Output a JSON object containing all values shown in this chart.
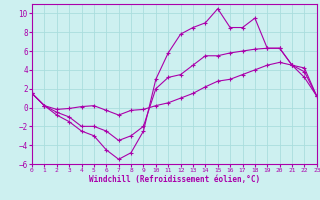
{
  "xlabel": "Windchill (Refroidissement éolien,°C)",
  "xlim": [
    0,
    23
  ],
  "ylim": [
    -6,
    11
  ],
  "bg_color": "#cdf0f0",
  "grid_color": "#aadddd",
  "line_color": "#aa00aa",
  "xticks": [
    0,
    1,
    2,
    3,
    4,
    5,
    6,
    7,
    8,
    9,
    10,
    11,
    12,
    13,
    14,
    15,
    16,
    17,
    18,
    19,
    20,
    21,
    22,
    23
  ],
  "yticks": [
    -6,
    -4,
    -2,
    0,
    2,
    4,
    6,
    8,
    10
  ],
  "line1_x": [
    0,
    1,
    2,
    3,
    4,
    5,
    6,
    7,
    8,
    9,
    10,
    11,
    12,
    13,
    14,
    15,
    16,
    17,
    18,
    19,
    20,
    21,
    22,
    23
  ],
  "line1_y": [
    1.5,
    0.2,
    -0.8,
    -1.5,
    -2.5,
    -3.0,
    -4.5,
    -5.5,
    -4.8,
    -2.5,
    3.0,
    5.8,
    7.8,
    8.5,
    9.0,
    10.5,
    8.5,
    8.5,
    9.5,
    6.3,
    6.3,
    4.5,
    3.2,
    1.2
  ],
  "line2_x": [
    0,
    1,
    2,
    3,
    4,
    5,
    6,
    7,
    8,
    9,
    10,
    11,
    12,
    13,
    14,
    15,
    16,
    17,
    18,
    19,
    20,
    21,
    22,
    23
  ],
  "line2_y": [
    1.5,
    0.2,
    -0.5,
    -1.0,
    -2.0,
    -2.0,
    -2.5,
    -3.5,
    -3.0,
    -2.0,
    2.0,
    3.2,
    3.5,
    4.5,
    5.5,
    5.5,
    5.8,
    6.0,
    6.2,
    6.3,
    6.3,
    4.5,
    3.8,
    1.2
  ],
  "line3_x": [
    0,
    1,
    2,
    3,
    4,
    5,
    6,
    7,
    8,
    9,
    10,
    11,
    12,
    13,
    14,
    15,
    16,
    17,
    18,
    19,
    20,
    21,
    22,
    23
  ],
  "line3_y": [
    1.5,
    0.2,
    -0.2,
    -0.1,
    0.1,
    0.2,
    -0.3,
    -0.8,
    -0.3,
    -0.2,
    0.2,
    0.5,
    1.0,
    1.5,
    2.2,
    2.8,
    3.0,
    3.5,
    4.0,
    4.5,
    4.8,
    4.5,
    4.2,
    1.2
  ]
}
